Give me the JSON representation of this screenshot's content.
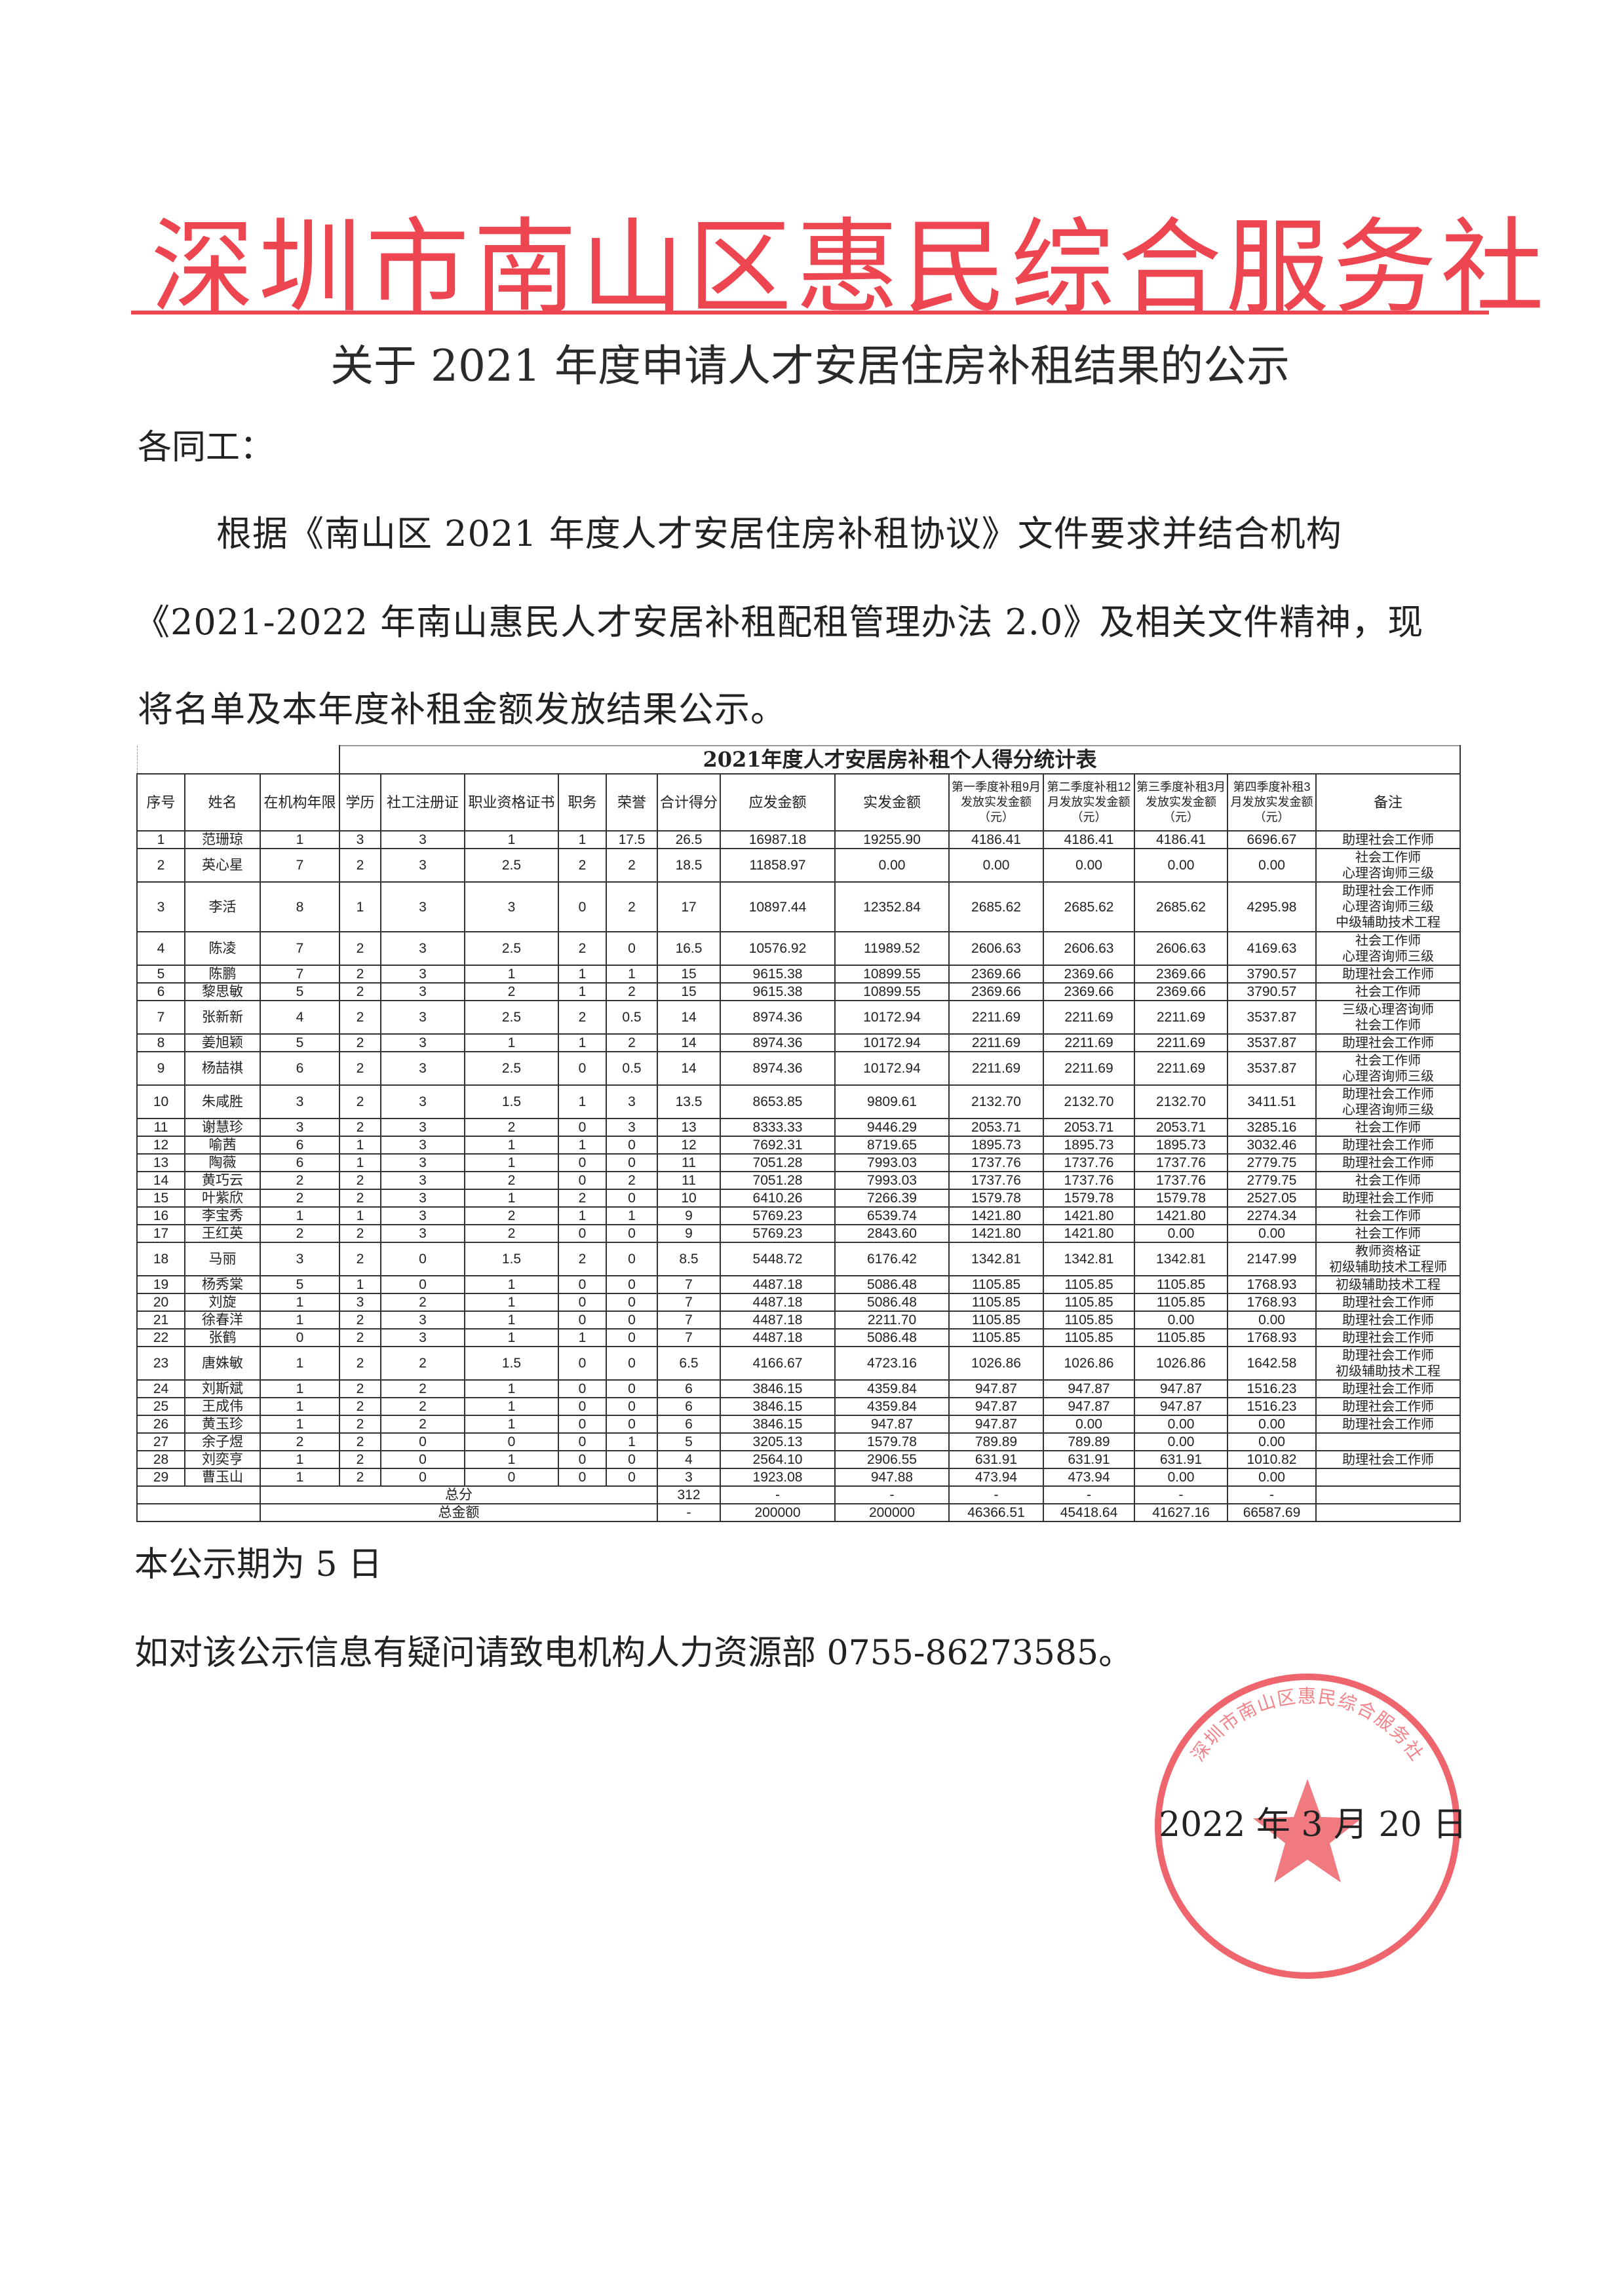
{
  "letterhead": {
    "org_name": "深圳市南山区惠民综合服务社",
    "accent_color": "#ee4650"
  },
  "notice": {
    "title": "关于 2021 年度申请人才安居住房补租结果的公示",
    "salutation": "各同工：",
    "paragraph_lines": [
      "根据《南山区 2021 年度人才安居住房补租协议》文件要求并结合机构",
      "《2021-2022 年南山惠民人才安居补租配租管理办法 2.0》及相关文件精神，现",
      "将名单及本年度补租金额发放结果公示。"
    ]
  },
  "table": {
    "title": "2021年度人才安居房补租个人得分统计表",
    "headers": [
      "序号",
      "姓名",
      "在机构年限",
      "学历",
      "社工注册证",
      "职业资格证书",
      "职务",
      "荣誉",
      "合计得分",
      "应发金额",
      "实发金额",
      "第一季度补租9月发放实发金额（元）",
      "第二季度补租12月发放实发金额（元）",
      "第三季度补租3月发放实发金额（元）",
      "第四季度补租3月发放实发金额（元）",
      "备注"
    ],
    "rows": [
      [
        "1",
        "范珊琼",
        "1",
        "3",
        "3",
        "1",
        "1",
        "17.5",
        "26.5",
        "16987.18",
        "19255.90",
        "4186.41",
        "4186.41",
        "4186.41",
        "6696.67",
        [
          "助理社会工作师"
        ]
      ],
      [
        "2",
        "英心星",
        "7",
        "2",
        "3",
        "2.5",
        "2",
        "2",
        "18.5",
        "11858.97",
        "0.00",
        "0.00",
        "0.00",
        "0.00",
        "0.00",
        [
          "社会工作师",
          "心理咨询师三级"
        ]
      ],
      [
        "3",
        "李活",
        "8",
        "1",
        "3",
        "3",
        "0",
        "2",
        "17",
        "10897.44",
        "12352.84",
        "2685.62",
        "2685.62",
        "2685.62",
        "4295.98",
        [
          "助理社会工作师",
          "心理咨询师三级",
          "中级辅助技术工程"
        ]
      ],
      [
        "4",
        "陈凌",
        "7",
        "2",
        "3",
        "2.5",
        "2",
        "0",
        "16.5",
        "10576.92",
        "11989.52",
        "2606.63",
        "2606.63",
        "2606.63",
        "4169.63",
        [
          "社会工作师",
          "心理咨询师三级"
        ]
      ],
      [
        "5",
        "陈鹏",
        "7",
        "2",
        "3",
        "1",
        "1",
        "1",
        "15",
        "9615.38",
        "10899.55",
        "2369.66",
        "2369.66",
        "2369.66",
        "3790.57",
        [
          "助理社会工作师"
        ]
      ],
      [
        "6",
        "黎思敏",
        "5",
        "2",
        "3",
        "2",
        "1",
        "2",
        "15",
        "9615.38",
        "10899.55",
        "2369.66",
        "2369.66",
        "2369.66",
        "3790.57",
        [
          "社会工作师"
        ]
      ],
      [
        "7",
        "张新新",
        "4",
        "2",
        "3",
        "2.5",
        "2",
        "0.5",
        "14",
        "8974.36",
        "10172.94",
        "2211.69",
        "2211.69",
        "2211.69",
        "3537.87",
        [
          "三级心理咨询师",
          "社会工作师"
        ]
      ],
      [
        "8",
        "姜旭颖",
        "5",
        "2",
        "3",
        "1",
        "1",
        "2",
        "14",
        "8974.36",
        "10172.94",
        "2211.69",
        "2211.69",
        "2211.69",
        "3537.87",
        [
          "助理社会工作师"
        ]
      ],
      [
        "9",
        "杨喆祺",
        "6",
        "2",
        "3",
        "2.5",
        "0",
        "0.5",
        "14",
        "8974.36",
        "10172.94",
        "2211.69",
        "2211.69",
        "2211.69",
        "3537.87",
        [
          "社会工作师",
          "心理咨询师三级"
        ]
      ],
      [
        "10",
        "朱咸胜",
        "3",
        "2",
        "3",
        "1.5",
        "1",
        "3",
        "13.5",
        "8653.85",
        "9809.61",
        "2132.70",
        "2132.70",
        "2132.70",
        "3411.51",
        [
          "助理社会工作师",
          "心理咨询师三级"
        ]
      ],
      [
        "11",
        "谢慧珍",
        "3",
        "2",
        "3",
        "2",
        "0",
        "3",
        "13",
        "8333.33",
        "9446.29",
        "2053.71",
        "2053.71",
        "2053.71",
        "3285.16",
        [
          "社会工作师"
        ]
      ],
      [
        "12",
        "喻茜",
        "6",
        "1",
        "3",
        "1",
        "1",
        "0",
        "12",
        "7692.31",
        "8719.65",
        "1895.73",
        "1895.73",
        "1895.73",
        "3032.46",
        [
          "助理社会工作师"
        ]
      ],
      [
        "13",
        "陶薇",
        "6",
        "1",
        "3",
        "1",
        "0",
        "0",
        "11",
        "7051.28",
        "7993.03",
        "1737.76",
        "1737.76",
        "1737.76",
        "2779.75",
        [
          "助理社会工作师"
        ]
      ],
      [
        "14",
        "黄巧云",
        "2",
        "2",
        "3",
        "2",
        "0",
        "2",
        "11",
        "7051.28",
        "7993.03",
        "1737.76",
        "1737.76",
        "1737.76",
        "2779.75",
        [
          "社会工作师"
        ]
      ],
      [
        "15",
        "叶紫欣",
        "2",
        "2",
        "3",
        "1",
        "2",
        "0",
        "10",
        "6410.26",
        "7266.39",
        "1579.78",
        "1579.78",
        "1579.78",
        "2527.05",
        [
          "助理社会工作师"
        ]
      ],
      [
        "16",
        "李宝秀",
        "1",
        "1",
        "3",
        "2",
        "1",
        "1",
        "9",
        "5769.23",
        "6539.74",
        "1421.80",
        "1421.80",
        "1421.80",
        "2274.34",
        [
          "社会工作师"
        ]
      ],
      [
        "17",
        "王红英",
        "2",
        "2",
        "3",
        "2",
        "0",
        "0",
        "9",
        "5769.23",
        "2843.60",
        "1421.80",
        "1421.80",
        "0.00",
        "0.00",
        [
          "社会工作师"
        ]
      ],
      [
        "18",
        "马丽",
        "3",
        "2",
        "0",
        "1.5",
        "2",
        "0",
        "8.5",
        "5448.72",
        "6176.42",
        "1342.81",
        "1342.81",
        "1342.81",
        "2147.99",
        [
          "教师资格证",
          "初级辅助技术工程师"
        ]
      ],
      [
        "19",
        "杨秀棠",
        "5",
        "1",
        "0",
        "1",
        "0",
        "0",
        "7",
        "4487.18",
        "5086.48",
        "1105.85",
        "1105.85",
        "1105.85",
        "1768.93",
        [
          "初级辅助技术工程"
        ]
      ],
      [
        "20",
        "刘旋",
        "1",
        "3",
        "2",
        "1",
        "0",
        "0",
        "7",
        "4487.18",
        "5086.48",
        "1105.85",
        "1105.85",
        "1105.85",
        "1768.93",
        [
          "助理社会工作师"
        ]
      ],
      [
        "21",
        "徐春洋",
        "1",
        "2",
        "3",
        "1",
        "0",
        "0",
        "7",
        "4487.18",
        "2211.70",
        "1105.85",
        "1105.85",
        "0.00",
        "0.00",
        [
          "助理社会工作师"
        ]
      ],
      [
        "22",
        "张鹤",
        "0",
        "2",
        "3",
        "1",
        "1",
        "0",
        "7",
        "4487.18",
        "5086.48",
        "1105.85",
        "1105.85",
        "1105.85",
        "1768.93",
        [
          "助理社会工作师"
        ]
      ],
      [
        "23",
        "唐姝敏",
        "1",
        "2",
        "2",
        "1.5",
        "0",
        "0",
        "6.5",
        "4166.67",
        "4723.16",
        "1026.86",
        "1026.86",
        "1026.86",
        "1642.58",
        [
          "助理社会工作师",
          "初级辅助技术工程"
        ]
      ],
      [
        "24",
        "刘斯斌",
        "1",
        "2",
        "2",
        "1",
        "0",
        "0",
        "6",
        "3846.15",
        "4359.84",
        "947.87",
        "947.87",
        "947.87",
        "1516.23",
        [
          "助理社会工作师"
        ]
      ],
      [
        "25",
        "王成伟",
        "1",
        "2",
        "2",
        "1",
        "0",
        "0",
        "6",
        "3846.15",
        "4359.84",
        "947.87",
        "947.87",
        "947.87",
        "1516.23",
        [
          "助理社会工作师"
        ]
      ],
      [
        "26",
        "黄玉珍",
        "1",
        "2",
        "2",
        "1",
        "0",
        "0",
        "6",
        "3846.15",
        "947.87",
        "947.87",
        "0.00",
        "0.00",
        "0.00",
        [
          "助理社会工作师"
        ]
      ],
      [
        "27",
        "余子煜",
        "2",
        "2",
        "0",
        "0",
        "0",
        "1",
        "5",
        "3205.13",
        "1579.78",
        "789.89",
        "789.89",
        "0.00",
        "0.00",
        []
      ],
      [
        "28",
        "刘奕亨",
        "1",
        "2",
        "0",
        "1",
        "0",
        "0",
        "4",
        "2564.10",
        "2906.55",
        "631.91",
        "631.91",
        "631.91",
        "1010.82",
        [
          "助理社会工作师"
        ]
      ],
      [
        "29",
        "曹玉山",
        "1",
        "2",
        "0",
        "0",
        "0",
        "0",
        "3",
        "1923.08",
        "947.88",
        "473.94",
        "473.94",
        "0.00",
        "0.00",
        []
      ]
    ],
    "totals": [
      {
        "label": "总分",
        "values": [
          "312",
          "-",
          "-",
          "-",
          "-",
          "-",
          "-"
        ]
      },
      {
        "label": "总金额",
        "values": [
          "-",
          "200000",
          "200000",
          "46366.51",
          "45418.64",
          "41627.16",
          "66587.69"
        ]
      }
    ]
  },
  "footer": {
    "notice_period": "本公示期为 5 日",
    "contact": "如对该公示信息有疑问请致电机构人力资源部 0755-86273585。",
    "date": "2022 年 3 月 20 日"
  },
  "stamp": {
    "text": "深圳市南山区惠民综合服务社",
    "color": "#e8323c"
  }
}
